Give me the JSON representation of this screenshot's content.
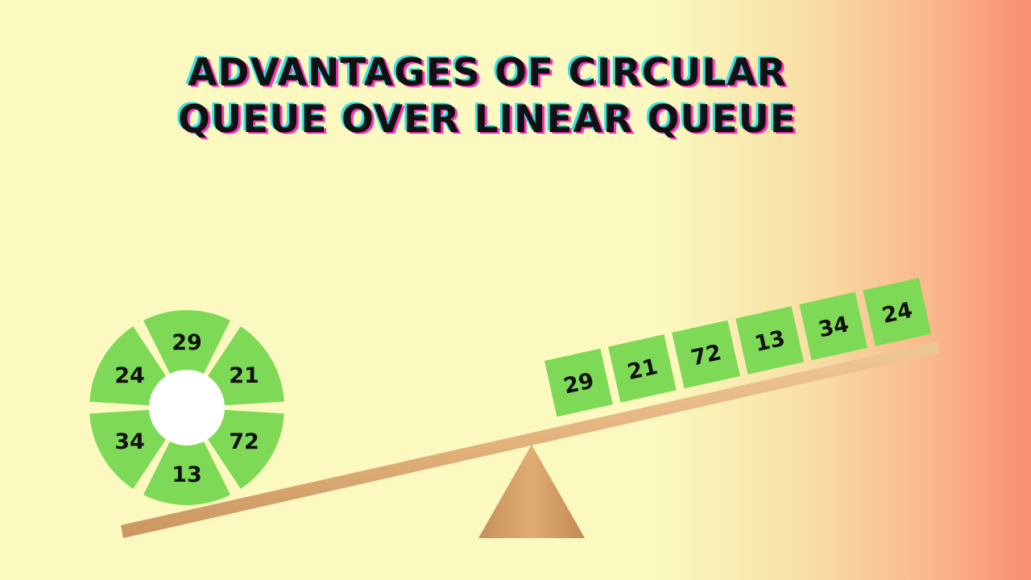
{
  "title": {
    "line1": "ADVANTAGES OF CIRCULAR",
    "line2": "QUEUE OVER LINEAR QUEUE"
  },
  "circular_queue": {
    "values": [
      "29",
      "21",
      "72",
      "13",
      "34",
      "24"
    ],
    "segment_color": "#7ed957"
  },
  "linear_queue": {
    "values": [
      "29",
      "21",
      "72",
      "13",
      "34",
      "24"
    ],
    "cell_color": "#7ed957"
  },
  "seesaw": {
    "plank_color": "#e3b37e",
    "fulcrum_color": "#d9a46a"
  }
}
